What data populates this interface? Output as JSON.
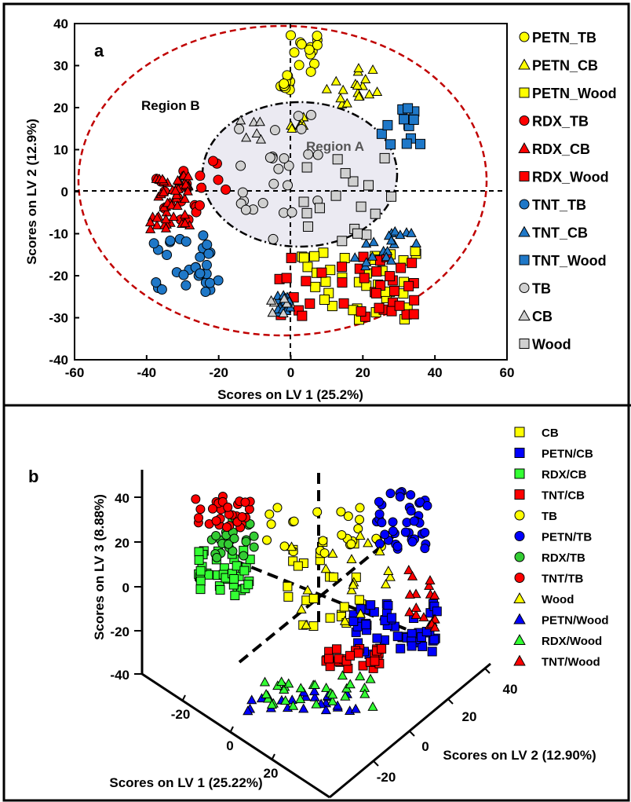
{
  "panel_a": {
    "label": "a",
    "xlabel": "Scores on LV 1 (25.2%)",
    "ylabel": "Scores on LV 2 (12.9%)",
    "x_ticks": [
      "-60",
      "-40",
      "-20",
      "0",
      "20",
      "40",
      "60"
    ],
    "y_ticks": [
      "40",
      "30",
      "20",
      "10",
      "0",
      "-10",
      "-20",
      "-30",
      "-40"
    ],
    "region_a": "Region A",
    "region_b": "Region B",
    "legend": [
      {
        "name": "PETN_TB",
        "color": "#FFFF00",
        "marker": "circle"
      },
      {
        "name": "PETN_CB",
        "color": "#FFFF00",
        "marker": "triangle"
      },
      {
        "name": "PETN_Wood",
        "color": "#FFFF00",
        "marker": "square"
      },
      {
        "name": "RDX_TB",
        "color": "#FF0000",
        "marker": "circle"
      },
      {
        "name": "RDX_CB",
        "color": "#FF0000",
        "marker": "triangle"
      },
      {
        "name": "RDX_Wood",
        "color": "#FF0000",
        "marker": "square"
      },
      {
        "name": "TNT_TB",
        "color": "#1F78C8",
        "marker": "circle"
      },
      {
        "name": "TNT_CB",
        "color": "#1F78C8",
        "marker": "triangle"
      },
      {
        "name": "TNT_Wood",
        "color": "#1F78C8",
        "marker": "square"
      },
      {
        "name": "TB",
        "color": "#D0D0D0",
        "marker": "circle"
      },
      {
        "name": "CB",
        "color": "#D0D0D0",
        "marker": "triangle"
      },
      {
        "name": "Wood",
        "color": "#D0D0D0",
        "marker": "square"
      }
    ]
  },
  "panel_b": {
    "label": "b",
    "xlabel": "Scores on LV 1 (25.22%)",
    "ylabel": "Scores on LV 2 (12.90%)",
    "zlabel": "Scores on LV 3 (8.88%)",
    "z_ticks": [
      "40",
      "20",
      "0",
      "-20",
      "-40"
    ],
    "x_ticks": [
      "-20",
      "0",
      "20"
    ],
    "y_ticks": [
      "40",
      "20",
      "0",
      "-20"
    ],
    "legend": [
      {
        "name": "CB",
        "color": "#FFFF00",
        "marker": "square"
      },
      {
        "name": "PETN/CB",
        "color": "#0000FF",
        "marker": "square"
      },
      {
        "name": "RDX/CB",
        "color": "#33FF33",
        "marker": "square"
      },
      {
        "name": "TNT/CB",
        "color": "#FF0000",
        "marker": "square"
      },
      {
        "name": "TB",
        "color": "#FFFF00",
        "marker": "circle"
      },
      {
        "name": "PETN/TB",
        "color": "#0000FF",
        "marker": "circle"
      },
      {
        "name": "RDX/TB",
        "color": "#33CC33",
        "marker": "circle"
      },
      {
        "name": "TNT/TB",
        "color": "#FF0000",
        "marker": "circle"
      },
      {
        "name": "Wood",
        "color": "#FFFF00",
        "marker": "triangle"
      },
      {
        "name": "PETN/Wood",
        "color": "#0000FF",
        "marker": "triangle"
      },
      {
        "name": "RDX/Wood",
        "color": "#33FF33",
        "marker": "triangle"
      },
      {
        "name": "TNT/Wood",
        "color": "#FF0000",
        "marker": "triangle"
      }
    ]
  },
  "chart_data": [
    {
      "type": "scatter",
      "title": "a",
      "xlabel": "Scores on LV 1 (25.2%)",
      "ylabel": "Scores on LV 2 (12.9%)",
      "xlim": [
        -60,
        60
      ],
      "ylim": [
        -40,
        40
      ],
      "grid": false,
      "legend_position": "right",
      "series": [
        {
          "name": "PETN_TB",
          "clusters": [
            {
              "x": [
                0,
                8
              ],
              "y": [
                28,
                38
              ]
            },
            {
              "x": [
                -3,
                0
              ],
              "y": [
                24,
                28
              ]
            }
          ]
        },
        {
          "name": "PETN_CB",
          "clusters": [
            {
              "x": [
                5,
                20
              ],
              "y": [
                18,
                30
              ]
            },
            {
              "x": [
                18,
                24
              ],
              "y": [
                22,
                30
              ]
            },
            {
              "x": [
                0,
                4
              ],
              "y": [
                15,
                18
              ]
            }
          ]
        },
        {
          "name": "PETN_Wood",
          "clusters": [
            {
              "x": [
                3,
                35
              ],
              "y": [
                -31,
                -14
              ]
            }
          ]
        },
        {
          "name": "RDX_TB",
          "clusters": [
            {
              "x": [
                -38,
                -28
              ],
              "y": [
                -7,
                6
              ]
            },
            {
              "x": [
                -27,
                -18
              ],
              "y": [
                -5,
                8
              ]
            }
          ]
        },
        {
          "name": "RDX_CB",
          "clusters": [
            {
              "x": [
                -39,
                -28
              ],
              "y": [
                -9,
                4
              ]
            }
          ]
        },
        {
          "name": "RDX_Wood",
          "clusters": [
            {
              "x": [
                -5,
                36
              ],
              "y": [
                -30,
                -15
              ]
            }
          ]
        },
        {
          "name": "TNT_TB",
          "clusters": [
            {
              "x": [
                -38,
                -20
              ],
              "y": [
                -24,
                -10
              ]
            }
          ]
        },
        {
          "name": "TNT_CB",
          "clusters": [
            {
              "x": [
                17,
                36
              ],
              "y": [
                -18,
                -8
              ]
            },
            {
              "x": [
                -4,
                0
              ],
              "y": [
                -29,
                -24
              ]
            }
          ]
        },
        {
          "name": "TNT_Wood",
          "clusters": [
            {
              "x": [
                24,
                36
              ],
              "y": [
                11,
                20
              ]
            }
          ]
        },
        {
          "name": "TB",
          "clusters": [
            {
              "x": [
                -15,
                8
              ],
              "y": [
                -12,
                20
              ]
            }
          ]
        },
        {
          "name": "CB",
          "clusters": [
            {
              "x": [
                -14,
                -8
              ],
              "y": [
                12,
                18
              ]
            },
            {
              "x": [
                -6,
                -1
              ],
              "y": [
                -29,
                -24
              ]
            }
          ]
        },
        {
          "name": "Wood",
          "clusters": [
            {
              "x": [
                0,
                28
              ],
              "y": [
                -12,
                8
              ]
            }
          ]
        }
      ]
    },
    {
      "type": "scatter",
      "title": "b",
      "projection": "3d",
      "xlabel": "Scores on LV 1 (25.22%)",
      "ylabel": "Scores on LV 2 (12.90%)",
      "zlabel": "Scores on LV 3 (8.88%)",
      "xlim": [
        -30,
        30
      ],
      "ylim": [
        -30,
        45
      ],
      "zlim": [
        -40,
        50
      ],
      "legend_position": "right",
      "series": [
        {
          "name": "CB"
        },
        {
          "name": "PETN/CB"
        },
        {
          "name": "RDX/CB"
        },
        {
          "name": "TNT/CB"
        },
        {
          "name": "TB"
        },
        {
          "name": "PETN/TB"
        },
        {
          "name": "RDX/TB"
        },
        {
          "name": "TNT/TB"
        },
        {
          "name": "Wood"
        },
        {
          "name": "PETN/Wood"
        },
        {
          "name": "RDX/Wood"
        },
        {
          "name": "TNT/Wood"
        }
      ]
    }
  ]
}
